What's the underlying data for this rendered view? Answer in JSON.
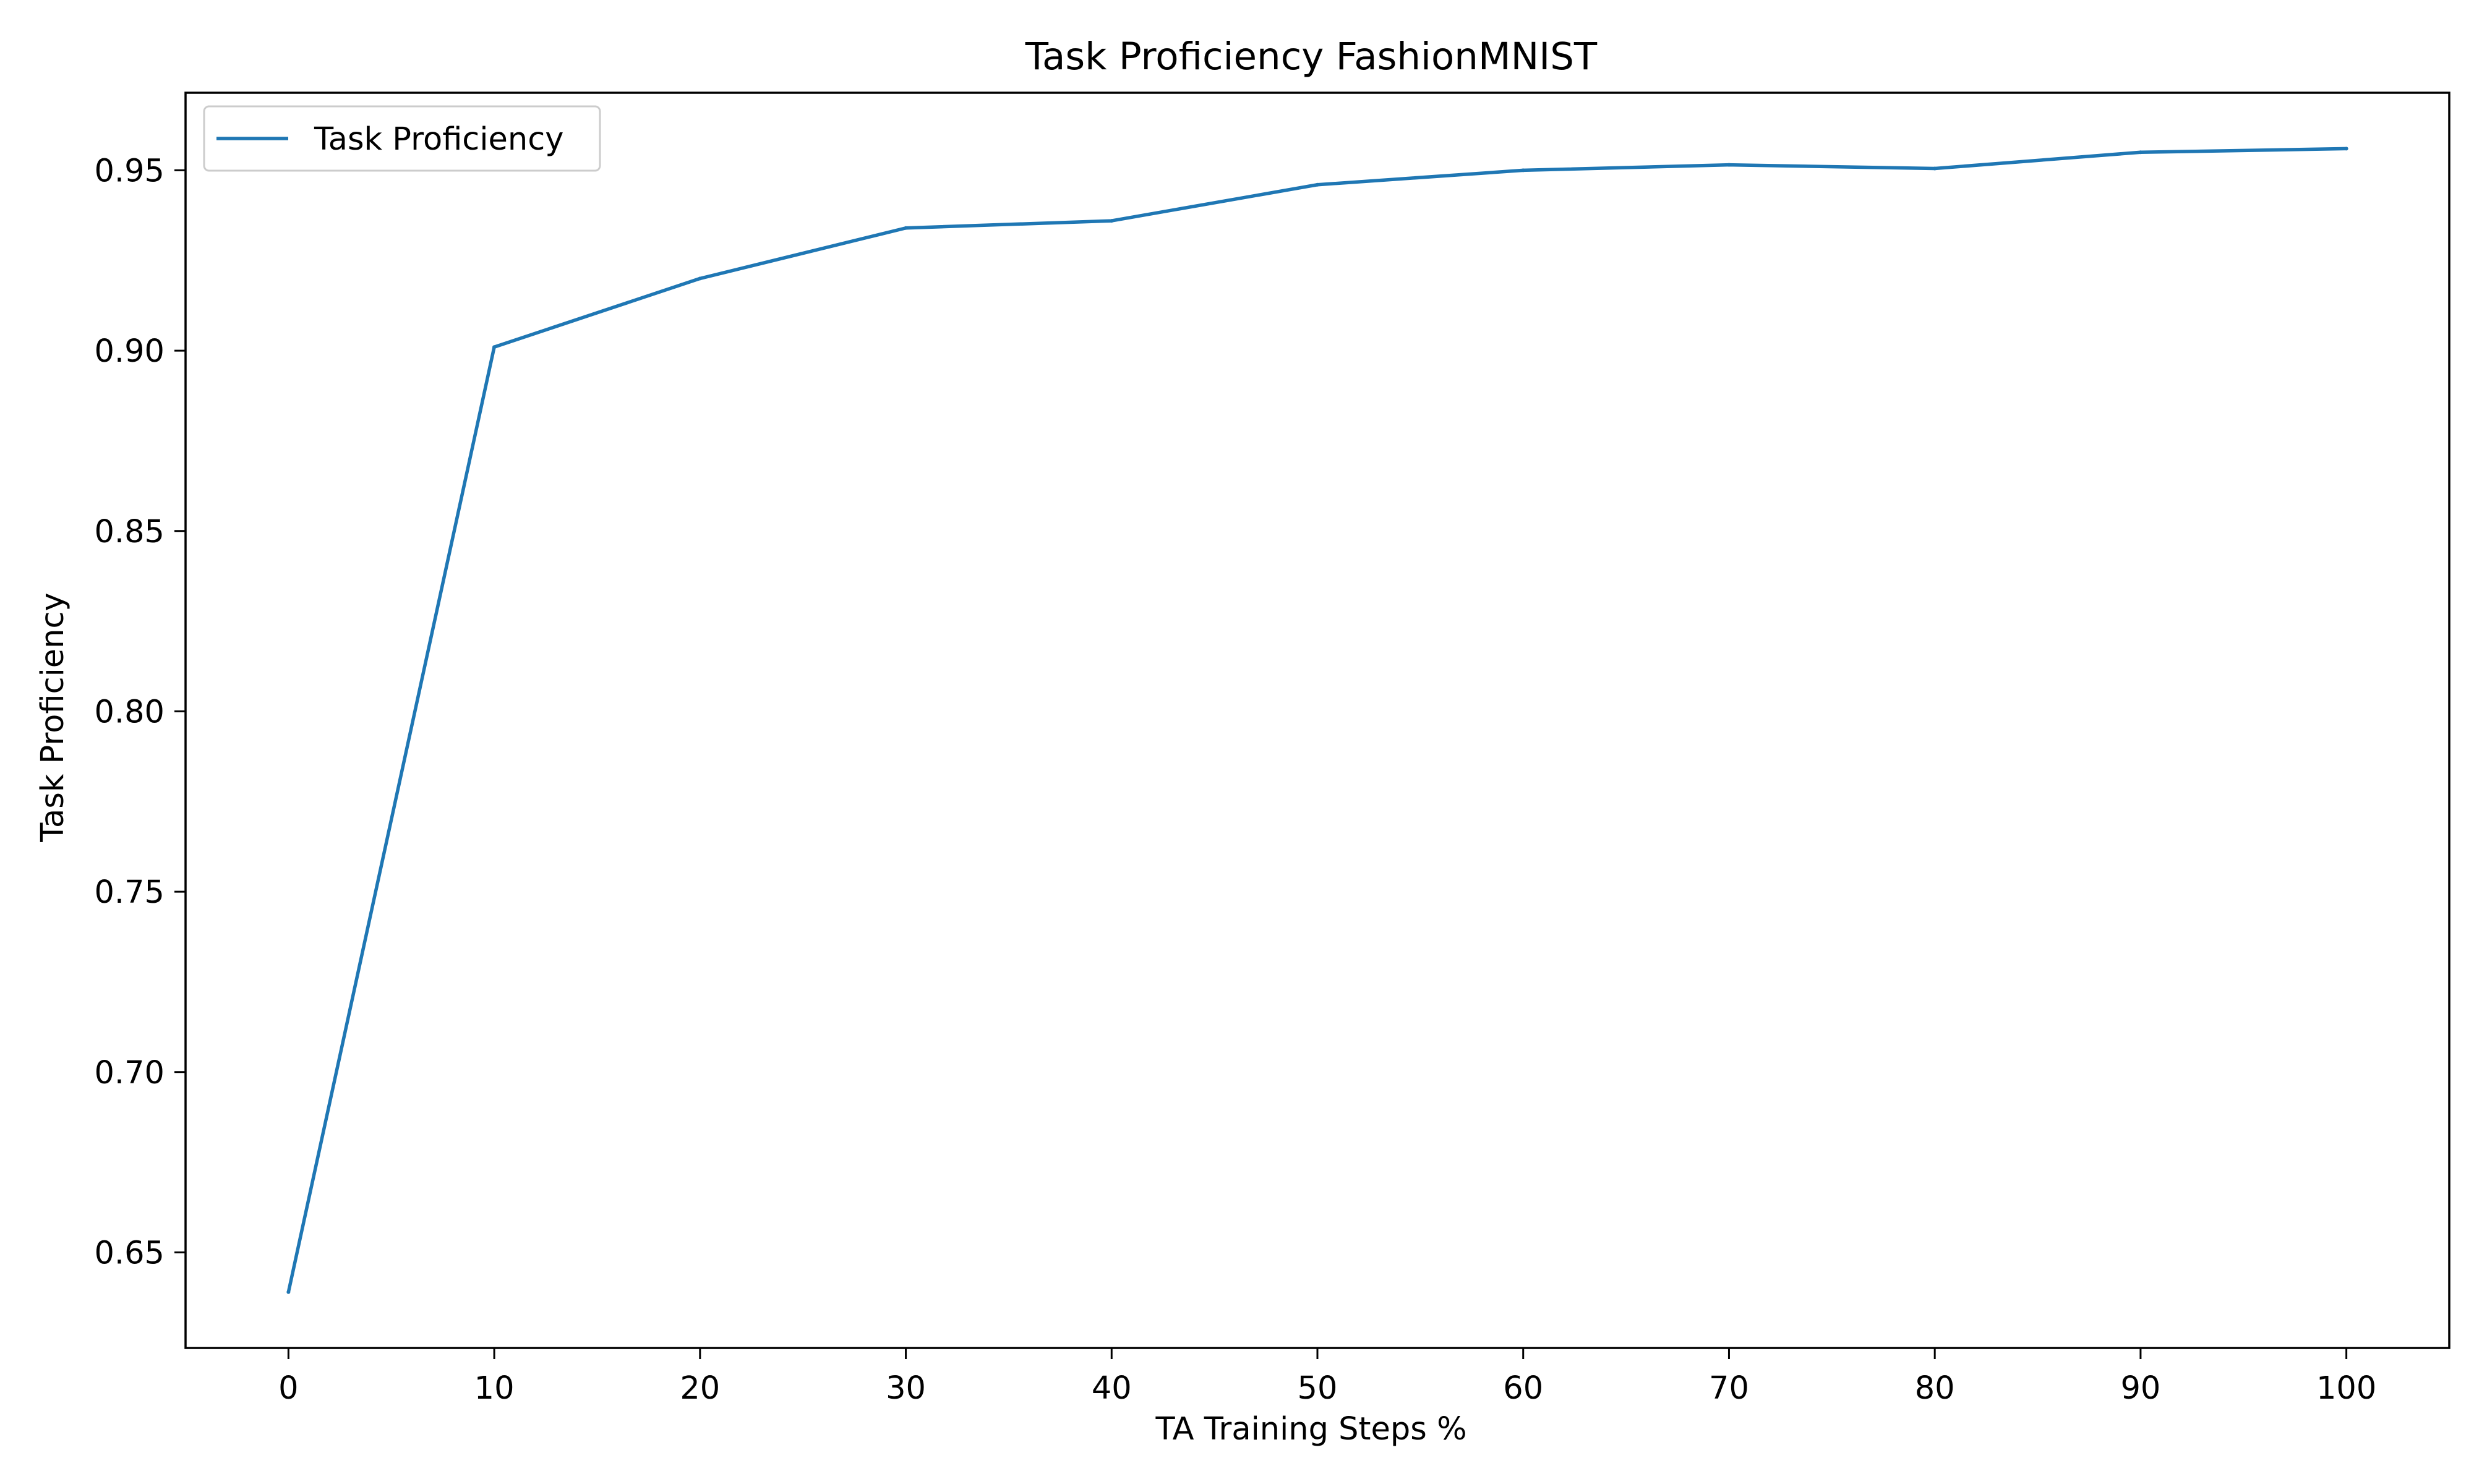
{
  "chart_data": {
    "type": "line",
    "title": "Task Proficiency FashionMNIST",
    "xlabel": "TA Training Steps %",
    "ylabel": "Task Proficiency",
    "x": [
      0,
      10,
      20,
      30,
      40,
      50,
      60,
      70,
      80,
      90,
      100
    ],
    "series": [
      {
        "name": "Task Proficiency",
        "color": "#1f77b4",
        "values": [
          0.639,
          0.901,
          0.92,
          0.934,
          0.936,
          0.946,
          0.95,
          0.9515,
          0.9505,
          0.955,
          0.956
        ]
      }
    ],
    "xticks": [
      0,
      10,
      20,
      30,
      40,
      50,
      60,
      70,
      80,
      90,
      100
    ],
    "xtick_labels": [
      "0",
      "10",
      "20",
      "30",
      "40",
      "50",
      "60",
      "70",
      "80",
      "90",
      "100"
    ],
    "yticks": [
      0.65,
      0.7,
      0.75,
      0.8,
      0.85,
      0.9,
      0.95
    ],
    "ytick_labels": [
      "0.65",
      "0.70",
      "0.75",
      "0.80",
      "0.85",
      "0.90",
      "0.95"
    ],
    "xlim": [
      -5,
      105
    ],
    "ylim": [
      0.6235,
      0.9715
    ],
    "grid": false,
    "legend_position": "upper-left"
  }
}
